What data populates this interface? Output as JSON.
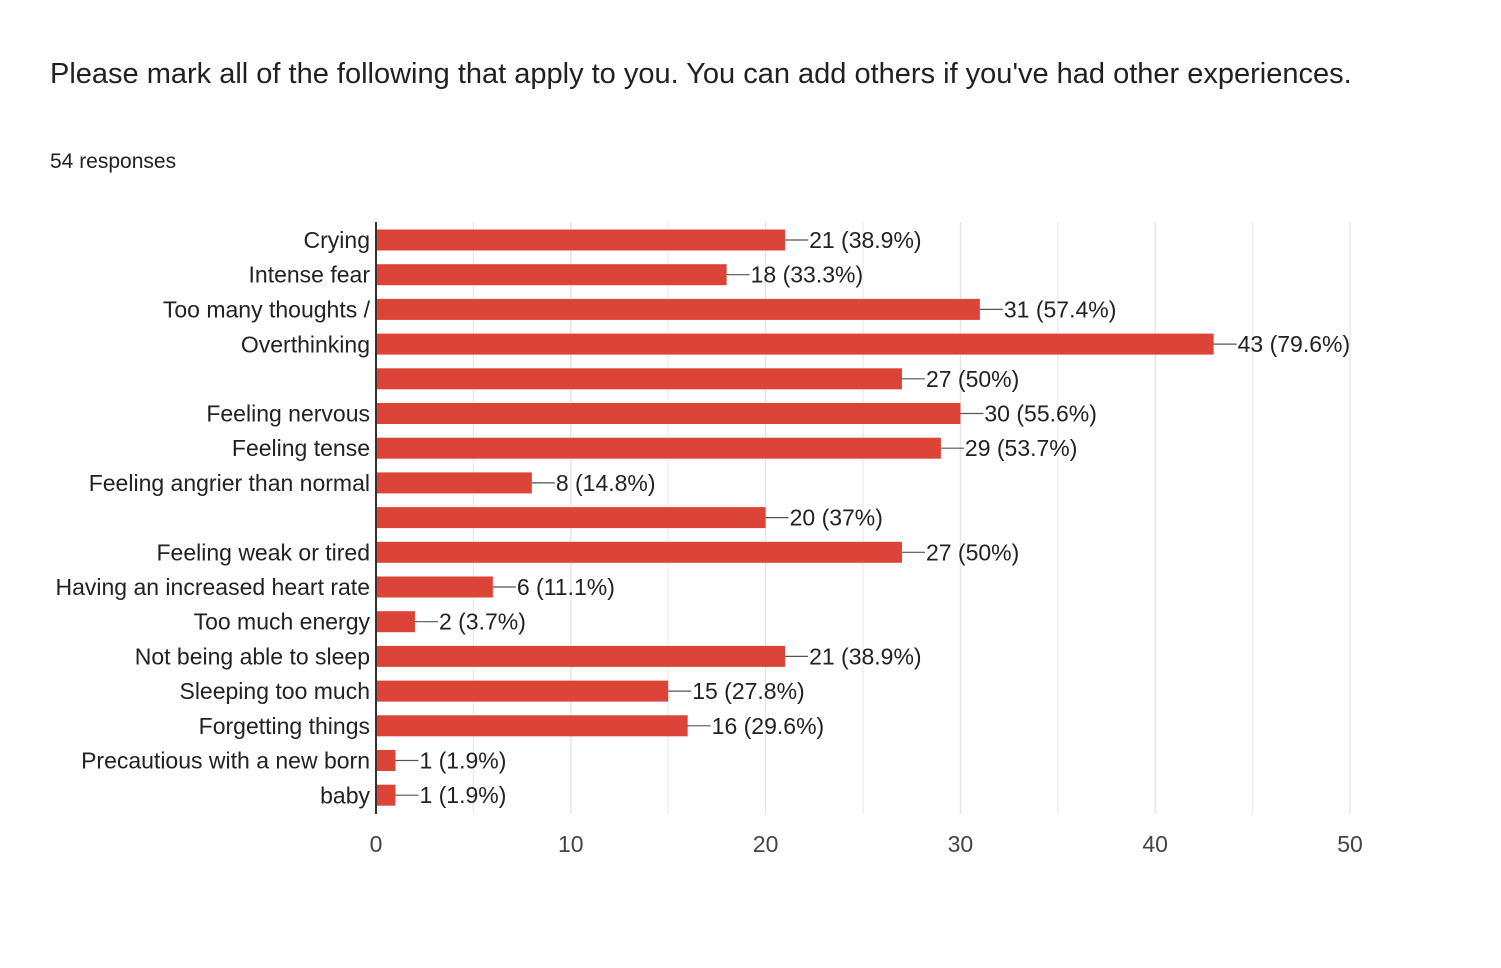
{
  "question": {
    "title": "Please mark all of the following that apply to you. You can add others if you've had other experiences.",
    "responses": "54 responses"
  },
  "colors": {
    "bar": "#db4437",
    "grid": "#e6e6e6",
    "axis": "#333333"
  },
  "chart_data": {
    "type": "bar",
    "orientation": "horizontal",
    "title": "",
    "xlabel": "",
    "ylabel": "",
    "xlim": [
      0,
      50
    ],
    "ticks": [
      0,
      10,
      20,
      30,
      40,
      50
    ],
    "grid": true,
    "bars": [
      {
        "value": 21,
        "label": "21 (38.9%)"
      },
      {
        "value": 18,
        "label": "18 (33.3%)"
      },
      {
        "value": 31,
        "label": "31 (57.4%)"
      },
      {
        "value": 43,
        "label": "43 (79.6%)"
      },
      {
        "value": 27,
        "label": "27 (50%)"
      },
      {
        "value": 30,
        "label": "30 (55.6%)"
      },
      {
        "value": 29,
        "label": "29 (53.7%)"
      },
      {
        "value": 8,
        "label": "8 (14.8%)"
      },
      {
        "value": 20,
        "label": "20 (37%)"
      },
      {
        "value": 27,
        "label": "27 (50%)"
      },
      {
        "value": 6,
        "label": "6 (11.1%)"
      },
      {
        "value": 2,
        "label": "2 (3.7%)"
      },
      {
        "value": 21,
        "label": "21 (38.9%)"
      },
      {
        "value": 15,
        "label": "15 (27.8%)"
      },
      {
        "value": 16,
        "label": "16 (29.6%)"
      },
      {
        "value": 1,
        "label": "1 (1.9%)"
      },
      {
        "value": 1,
        "label": "1 (1.9%)"
      }
    ],
    "category_labels": [
      {
        "lines": [
          "Crying"
        ],
        "row": 0
      },
      {
        "lines": [
          "Intense fear"
        ],
        "row": 1
      },
      {
        "lines": [
          "Too many thoughts /",
          "Overthinking"
        ],
        "row": 2.5
      },
      {
        "lines": [
          "Feeling nervous"
        ],
        "row": 5
      },
      {
        "lines": [
          "Feeling tense"
        ],
        "row": 6
      },
      {
        "lines": [
          "Feeling angrier than normal"
        ],
        "row": 7
      },
      {
        "lines": [
          "Feeling weak or tired"
        ],
        "row": 9
      },
      {
        "lines": [
          "Having an increased heart rate"
        ],
        "row": 10
      },
      {
        "lines": [
          "Too much energy"
        ],
        "row": 11
      },
      {
        "lines": [
          "Not being able to sleep"
        ],
        "row": 12
      },
      {
        "lines": [
          "Sleeping too much"
        ],
        "row": 13
      },
      {
        "lines": [
          "Forgetting things"
        ],
        "row": 14
      },
      {
        "lines": [
          "Precautious with a new born",
          "baby"
        ],
        "row": 15.5
      }
    ]
  }
}
